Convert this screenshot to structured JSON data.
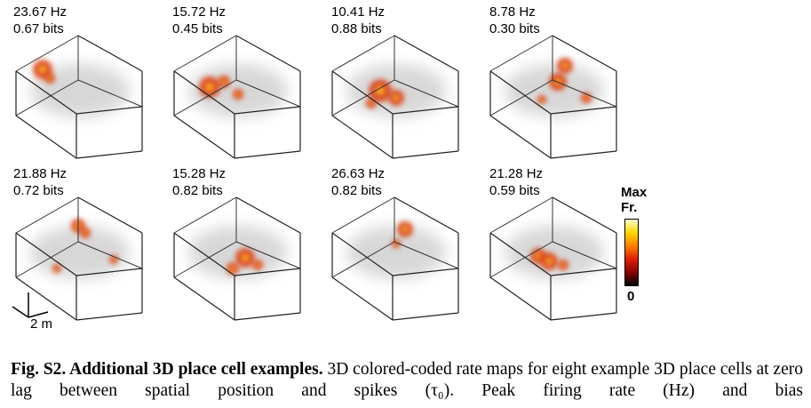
{
  "cells": [
    {
      "rate": "23.67 Hz",
      "info": "0.67 bits"
    },
    {
      "rate": "15.72 Hz",
      "info": "0.45 bits"
    },
    {
      "rate": "10.41 Hz",
      "info": "0.88 bits"
    },
    {
      "rate": "8.78 Hz",
      "info": "0.30 bits"
    },
    {
      "rate": "21.88 Hz",
      "info": "0.72 bits"
    },
    {
      "rate": "15.28 Hz",
      "info": "0.82 bits"
    },
    {
      "rate": "26.63 Hz",
      "info": "0.82 bits"
    },
    {
      "rate": "21.28 Hz",
      "info": "0.59 bits"
    }
  ],
  "colorbar": {
    "top_label_1": "Max",
    "top_label_2": "Fr.",
    "bottom_label": "0",
    "colors": [
      "#000000",
      "#8b0000",
      "#e02000",
      "#ff8000",
      "#ffd700",
      "#ffffcc"
    ]
  },
  "scale_bar": {
    "label": "2 m"
  },
  "caption": {
    "bold": "Fig. S2. Additional 3D place cell examples.",
    "text": " 3D colored-coded rate maps for eight example 3D place cells at zero lag between spatial position and spikes (τ₀). Peak firing rate (Hz) and bias"
  }
}
